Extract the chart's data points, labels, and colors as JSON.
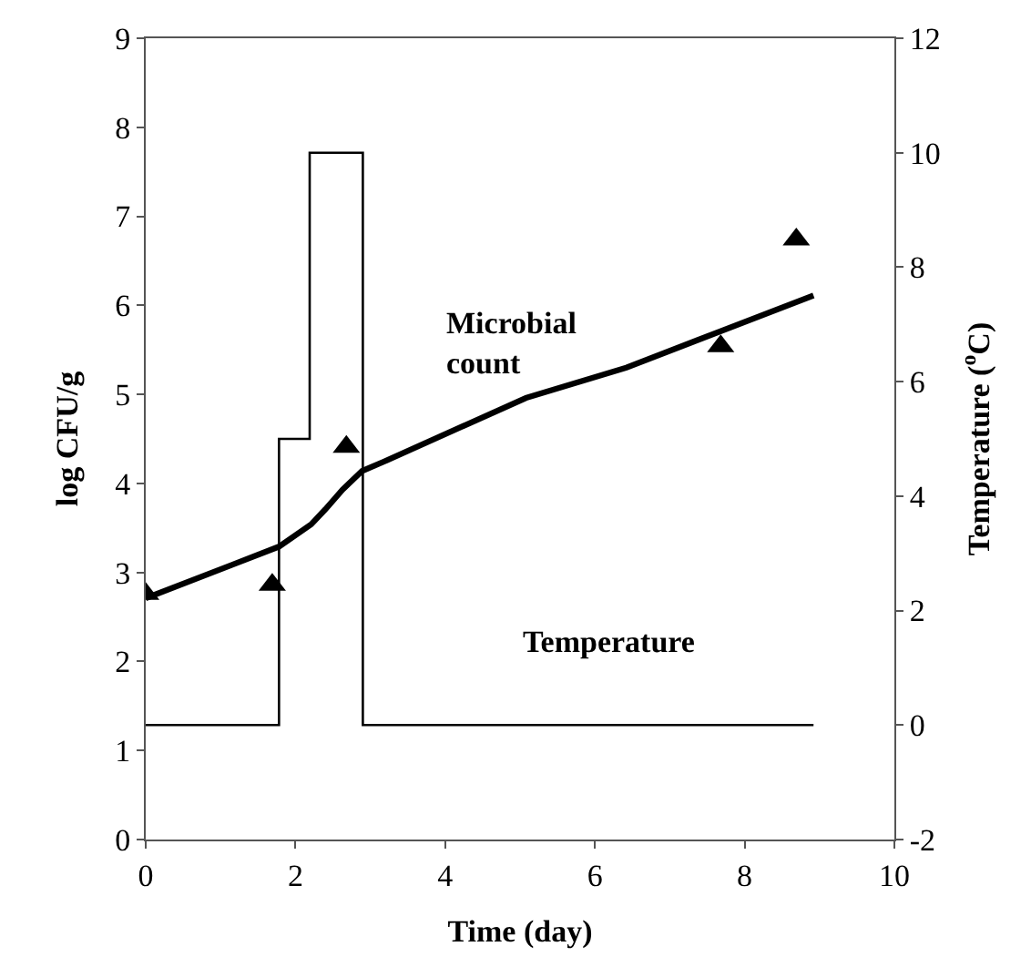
{
  "chart_data": {
    "type": "line",
    "xlabel": "Time (day)",
    "ylabel": "log CFU/g",
    "y2label": "Temperature ($^{o}$C)",
    "xlim": [
      0,
      10
    ],
    "xticks": [
      0,
      2,
      4,
      6,
      8,
      10
    ],
    "ylim": [
      0,
      9
    ],
    "yticks": [
      0,
      1,
      2,
      3,
      4,
      5,
      6,
      7,
      8,
      9
    ],
    "y2lim": [
      -2,
      12
    ],
    "y2ticks": [
      -2,
      0,
      2,
      4,
      6,
      8,
      10,
      12
    ],
    "series": [
      {
        "type": "scatter",
        "marker": "triangle",
        "color": "#000000",
        "x": [
          0,
          1.69,
          2.68,
          7.68,
          8.69
        ],
        "values": [
          2.76,
          2.86,
          4.41,
          5.54,
          6.74
        ]
      },
      {
        "marker": "none",
        "color": "#000000",
        "x": [
          0,
          1.78,
          2.21,
          2.4,
          2.63,
          2.89,
          3.17,
          5.08,
          6.42,
          7.68,
          8.92
        ],
        "values": [
          2.71,
          3.29,
          3.54,
          3.71,
          3.93,
          4.14,
          4.24,
          4.96,
          5.3,
          5.71,
          6.11
        ]
      },
      {
        "type": "step",
        "marker": "none",
        "color": "#000000",
        "axis": "y2",
        "x": [
          0,
          1.78,
          2.19,
          2.9,
          8.92
        ],
        "values": [
          0,
          5,
          10,
          0,
          0
        ]
      }
    ],
    "annotations": [
      "Microbial\ncount",
      "Temperature"
    ]
  }
}
